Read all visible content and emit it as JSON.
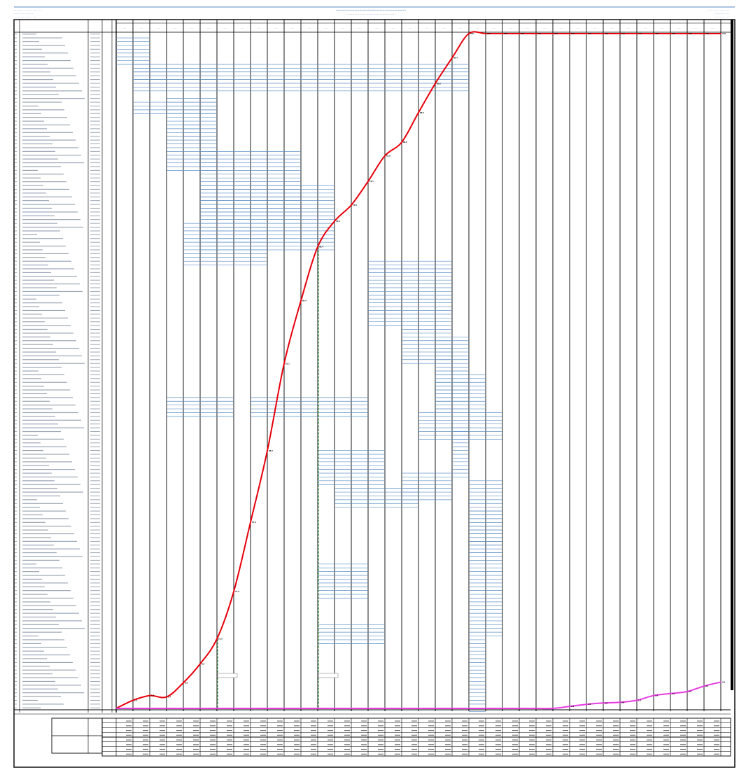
{
  "header": {
    "left_lines": [
      "............ .... ............ ....",
      "........ ..... ..... ....",
      "........ ..... ........ ....."
    ],
    "title": "........................................................................",
    "subtitle": ".......... ........ .... ........ ........ .......... ........",
    "right_lines": [
      "........ ..... ....... .....",
      "........ ..... ....",
      "........ ..... ...."
    ]
  },
  "colors": {
    "plan_curve": "#e8000b",
    "actual_curve": "#e83ae0",
    "bars": "#5b8fc7",
    "milestone": "#2e9b2e",
    "header_text": "#1f5fb0",
    "grid": "#000000"
  },
  "chart_data": {
    "type": "line",
    "title": "",
    "xlabel": "",
    "ylabel": "",
    "ylim": [
      0,
      100
    ],
    "x_periods": 36,
    "series": [
      {
        "key": "plan",
        "x": [
          0,
          1,
          2,
          3,
          4,
          5,
          6,
          7,
          8,
          9,
          10,
          11,
          12,
          13,
          14,
          15,
          16,
          17,
          18,
          19,
          20,
          21,
          22,
          23,
          24,
          25,
          26,
          27,
          28,
          29,
          30,
          31,
          32,
          33,
          34,
          35,
          36
        ],
        "values": [
          0,
          1.2,
          1.9,
          1.7,
          3.8,
          6.6,
          10.3,
          17.3,
          27.6,
          38.2,
          51.1,
          60.4,
          68.4,
          72.2,
          74.6,
          78.1,
          81.9,
          83.9,
          88.3,
          92.6,
          96.4,
          100,
          100,
          100,
          100,
          100,
          100,
          100,
          100,
          100,
          100,
          100,
          100,
          100,
          100,
          100,
          100
        ],
        "point_labels": [
          "",
          "1.2",
          "1.9",
          "1.7",
          "3.8",
          "6.6",
          "10.3",
          "17.3",
          "27.6",
          "38.2",
          "51.1",
          "60.4",
          "68.4",
          "72.2",
          "74.6",
          "78.1",
          "81.9",
          "83.9",
          "88.3",
          "92.6",
          "96.4",
          "100",
          "100",
          "100",
          "100",
          "100",
          "100",
          "100",
          "100",
          "100",
          "100",
          "100",
          "100",
          "100",
          "100",
          "100",
          "100"
        ]
      },
      {
        "key": "actual",
        "x": [
          0,
          1,
          2,
          3,
          4,
          5,
          6,
          7,
          8,
          9,
          10,
          11,
          12,
          13,
          14,
          15,
          16,
          17,
          18,
          19,
          20,
          21,
          22,
          23,
          24,
          25,
          26,
          27,
          28,
          29,
          30,
          31,
          32,
          33,
          34,
          35,
          36
        ],
        "values": [
          0,
          0,
          0,
          0,
          0,
          0,
          0,
          0,
          0,
          0,
          0,
          0,
          0,
          0,
          0,
          0,
          0,
          0,
          0,
          0,
          0,
          0,
          0,
          0,
          0,
          0,
          0,
          0.3,
          0.6,
          0.8,
          0.9,
          1.2,
          1.9,
          2.2,
          2.5,
          3.3,
          3.9
        ],
        "point_labels": [
          "",
          "",
          "",
          "",
          "",
          "",
          "",
          "",
          "",
          "",
          "",
          "",
          "",
          "",
          "",
          "",
          "",
          "",
          "",
          "",
          "",
          "",
          "",
          "",
          "",
          "",
          "",
          "0.3",
          "0.6",
          "0.8",
          "0.9",
          "1.2",
          "1.9",
          "2.2",
          "2.5",
          "3.3",
          "3.9"
        ]
      }
    ],
    "milestones": [
      6,
      12
    ],
    "month_headers": [
      "....",
      "....",
      "....",
      "...."
    ],
    "column_headers": [
      ".....",
      ".....",
      ".....",
      ".....",
      ".....",
      ".....",
      ".....",
      ".....",
      ".....",
      ".....",
      ".....",
      ".....",
      ".....",
      ".....",
      ".....",
      ".....",
      ".....",
      ".....",
      ".....",
      ".....",
      ".....",
      ".....",
      ".....",
      ".....",
      ".....",
      ".....",
      ".....",
      ".....",
      ".....",
      ".....",
      ".....",
      ".....",
      ".....",
      ".....",
      ".....",
      "....."
    ],
    "activity_rows": 179,
    "summary_row_groups": [
      4,
      4
    ]
  }
}
